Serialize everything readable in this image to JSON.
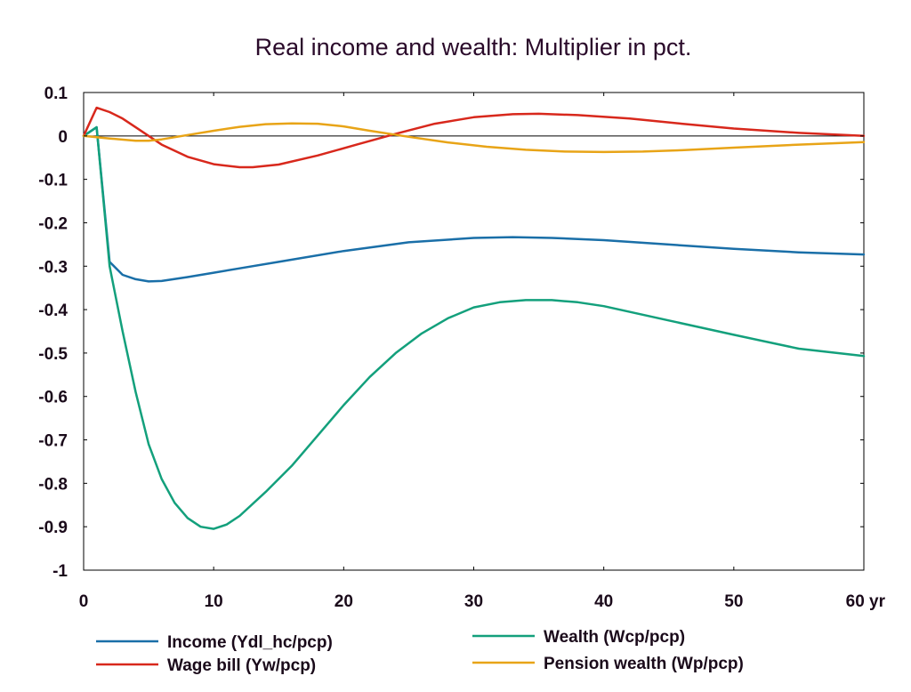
{
  "chart_data": {
    "type": "line",
    "title": "Real income and wealth: Multiplier in pct.",
    "xlabel": "",
    "ylabel": "",
    "xlim": [
      0,
      60
    ],
    "ylim": [
      -1,
      0.1
    ],
    "x_ticks": [
      0,
      10,
      20,
      30,
      40,
      50,
      60
    ],
    "x_tick_labels": [
      "0",
      "10",
      "20",
      "30",
      "40",
      "50",
      "60 yr"
    ],
    "y_ticks": [
      0.1,
      0,
      -0.1,
      -0.2,
      -0.3,
      -0.4,
      -0.5,
      -0.6,
      -0.7,
      -0.8,
      -0.9,
      -1
    ],
    "y_tick_labels": [
      "0.1",
      "0",
      "-0.1",
      "-0.2",
      "-0.3",
      "-0.4",
      "-0.5",
      "-0.6",
      "-0.7",
      "-0.8",
      "-0.9",
      "-1"
    ],
    "grid": false,
    "zero_line": true,
    "legend_position": "bottom",
    "series": [
      {
        "name": "Income (Ydl_hc/pcp)",
        "color": "#1a6fa8",
        "x": [
          0,
          1,
          2,
          3,
          4,
          5,
          6,
          8,
          10,
          12,
          15,
          20,
          25,
          30,
          33,
          36,
          40,
          45,
          50,
          55,
          60
        ],
        "y": [
          0,
          0.02,
          -0.29,
          -0.32,
          -0.33,
          -0.335,
          -0.334,
          -0.325,
          -0.315,
          -0.305,
          -0.29,
          -0.265,
          -0.245,
          -0.235,
          -0.233,
          -0.235,
          -0.24,
          -0.25,
          -0.26,
          -0.268,
          -0.273
        ]
      },
      {
        "name": "Wealth (Wcp/pcp)",
        "color": "#13a07c",
        "x": [
          0,
          1,
          2,
          3,
          4,
          5,
          6,
          7,
          8,
          9,
          10,
          11,
          12,
          14,
          16,
          18,
          20,
          22,
          24,
          26,
          28,
          30,
          32,
          34,
          36,
          38,
          40,
          45,
          50,
          55,
          60
        ],
        "y": [
          0,
          0.02,
          -0.3,
          -0.45,
          -0.59,
          -0.71,
          -0.79,
          -0.845,
          -0.88,
          -0.9,
          -0.905,
          -0.895,
          -0.875,
          -0.82,
          -0.76,
          -0.69,
          -0.62,
          -0.555,
          -0.5,
          -0.455,
          -0.42,
          -0.395,
          -0.383,
          -0.378,
          -0.378,
          -0.383,
          -0.392,
          -0.425,
          -0.458,
          -0.49,
          -0.507
        ]
      },
      {
        "name": "Wage bill (Yw/pcp)",
        "color": "#d8281c",
        "x": [
          0,
          1,
          2,
          3,
          4,
          5,
          6,
          8,
          10,
          12,
          13,
          15,
          18,
          21,
          24,
          27,
          30,
          33,
          35,
          38,
          42,
          46,
          50,
          55,
          60
        ],
        "y": [
          0,
          0.065,
          0.055,
          0.04,
          0.02,
          0,
          -0.02,
          -0.048,
          -0.065,
          -0.072,
          -0.072,
          -0.066,
          -0.045,
          -0.02,
          0.005,
          0.028,
          0.043,
          0.05,
          0.051,
          0.048,
          0.04,
          0.028,
          0.017,
          0.007,
          0
        ]
      },
      {
        "name": "Pension wealth (Wp/pcp)",
        "color": "#e8a417",
        "x": [
          0,
          2,
          4,
          5,
          6,
          8,
          10,
          12,
          14,
          16,
          18,
          20,
          22,
          25,
          28,
          31,
          34,
          37,
          40,
          43,
          46,
          50,
          55,
          60
        ],
        "y": [
          0,
          -0.006,
          -0.011,
          -0.011,
          -0.008,
          0.002,
          0.012,
          0.021,
          0.027,
          0.029,
          0.028,
          0.022,
          0.012,
          -0.002,
          -0.015,
          -0.025,
          -0.032,
          -0.036,
          -0.037,
          -0.036,
          -0.033,
          -0.027,
          -0.02,
          -0.014
        ]
      }
    ]
  }
}
